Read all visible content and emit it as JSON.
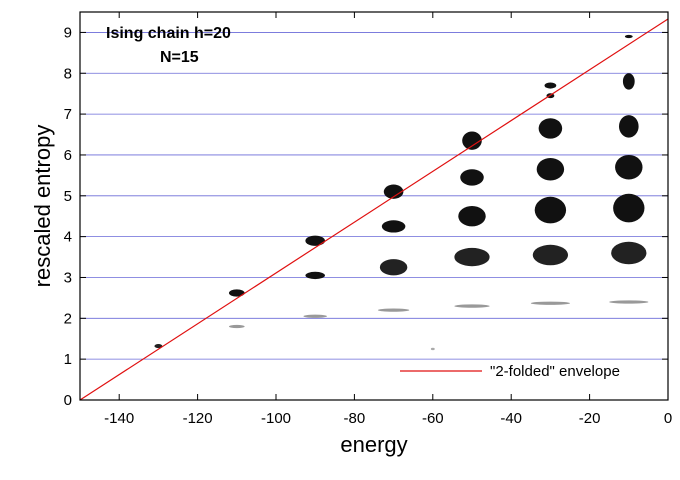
{
  "chart_data": {
    "type": "scatter",
    "title": "",
    "xlabel": "energy",
    "ylabel": "rescaled entropy",
    "xlim": [
      -150,
      0
    ],
    "ylim": [
      0,
      9.5
    ],
    "x_ticks": [
      -140,
      -120,
      -100,
      -80,
      -60,
      -40,
      -20,
      0
    ],
    "y_ticks": [
      0,
      1,
      2,
      3,
      4,
      5,
      6,
      7,
      8,
      9
    ],
    "grid": "horizontal",
    "annotations": [
      "Ising chain h=20",
      "N=15"
    ],
    "legend": {
      "position": "bottom-right",
      "entries": [
        {
          "label": "\"2-folded\" envelope",
          "color": "#e01010",
          "style": "line"
        }
      ]
    },
    "envelope_line": {
      "x": [
        -150,
        0
      ],
      "y": [
        0,
        9.33
      ]
    },
    "clusters": [
      {
        "x": -130,
        "y": 1.32,
        "width": 2,
        "height": 0.1,
        "shade": "#222222"
      },
      {
        "x": -110,
        "y": 2.62,
        "width": 4,
        "height": 0.18,
        "shade": "#111111"
      },
      {
        "x": -110,
        "y": 1.8,
        "width": 4,
        "height": 0.08,
        "shade": "#999999"
      },
      {
        "x": -90,
        "y": 3.9,
        "width": 5,
        "height": 0.25,
        "shade": "#111111"
      },
      {
        "x": -90,
        "y": 3.05,
        "width": 5,
        "height": 0.18,
        "shade": "#111111"
      },
      {
        "x": -90,
        "y": 2.05,
        "width": 6,
        "height": 0.08,
        "shade": "#999999"
      },
      {
        "x": -70,
        "y": 5.1,
        "width": 5,
        "height": 0.35,
        "shade": "#111111"
      },
      {
        "x": -70,
        "y": 4.25,
        "width": 6,
        "height": 0.3,
        "shade": "#111111"
      },
      {
        "x": -70,
        "y": 3.25,
        "width": 7,
        "height": 0.4,
        "shade": "#222222"
      },
      {
        "x": -70,
        "y": 2.2,
        "width": 8,
        "height": 0.08,
        "shade": "#999999"
      },
      {
        "x": -60,
        "y": 1.25,
        "width": 1,
        "height": 0.06,
        "shade": "#aaaaaa"
      },
      {
        "x": -50,
        "y": 6.35,
        "width": 5,
        "height": 0.45,
        "shade": "#111111"
      },
      {
        "x": -50,
        "y": 5.45,
        "width": 6,
        "height": 0.4,
        "shade": "#111111"
      },
      {
        "x": -50,
        "y": 4.5,
        "width": 7,
        "height": 0.5,
        "shade": "#111111"
      },
      {
        "x": -50,
        "y": 3.5,
        "width": 9,
        "height": 0.45,
        "shade": "#222222"
      },
      {
        "x": -50,
        "y": 2.3,
        "width": 9,
        "height": 0.08,
        "shade": "#999999"
      },
      {
        "x": -30,
        "y": 7.7,
        "width": 3,
        "height": 0.15,
        "shade": "#111111"
      },
      {
        "x": -30,
        "y": 7.45,
        "width": 2,
        "height": 0.12,
        "shade": "#111111"
      },
      {
        "x": -30,
        "y": 6.65,
        "width": 6,
        "height": 0.5,
        "shade": "#111111"
      },
      {
        "x": -30,
        "y": 5.65,
        "width": 7,
        "height": 0.55,
        "shade": "#111111"
      },
      {
        "x": -30,
        "y": 4.65,
        "width": 8,
        "height": 0.65,
        "shade": "#111111"
      },
      {
        "x": -30,
        "y": 3.55,
        "width": 9,
        "height": 0.5,
        "shade": "#222222"
      },
      {
        "x": -30,
        "y": 2.37,
        "width": 10,
        "height": 0.08,
        "shade": "#999999"
      },
      {
        "x": -10,
        "y": 8.9,
        "width": 2,
        "height": 0.08,
        "shade": "#111111"
      },
      {
        "x": -10,
        "y": 7.8,
        "width": 3,
        "height": 0.4,
        "shade": "#111111"
      },
      {
        "x": -10,
        "y": 6.7,
        "width": 5,
        "height": 0.55,
        "shade": "#111111"
      },
      {
        "x": -10,
        "y": 5.7,
        "width": 7,
        "height": 0.6,
        "shade": "#111111"
      },
      {
        "x": -10,
        "y": 4.7,
        "width": 8,
        "height": 0.7,
        "shade": "#111111"
      },
      {
        "x": -10,
        "y": 3.6,
        "width": 9,
        "height": 0.55,
        "shade": "#222222"
      },
      {
        "x": -10,
        "y": 2.4,
        "width": 10,
        "height": 0.08,
        "shade": "#999999"
      }
    ]
  }
}
